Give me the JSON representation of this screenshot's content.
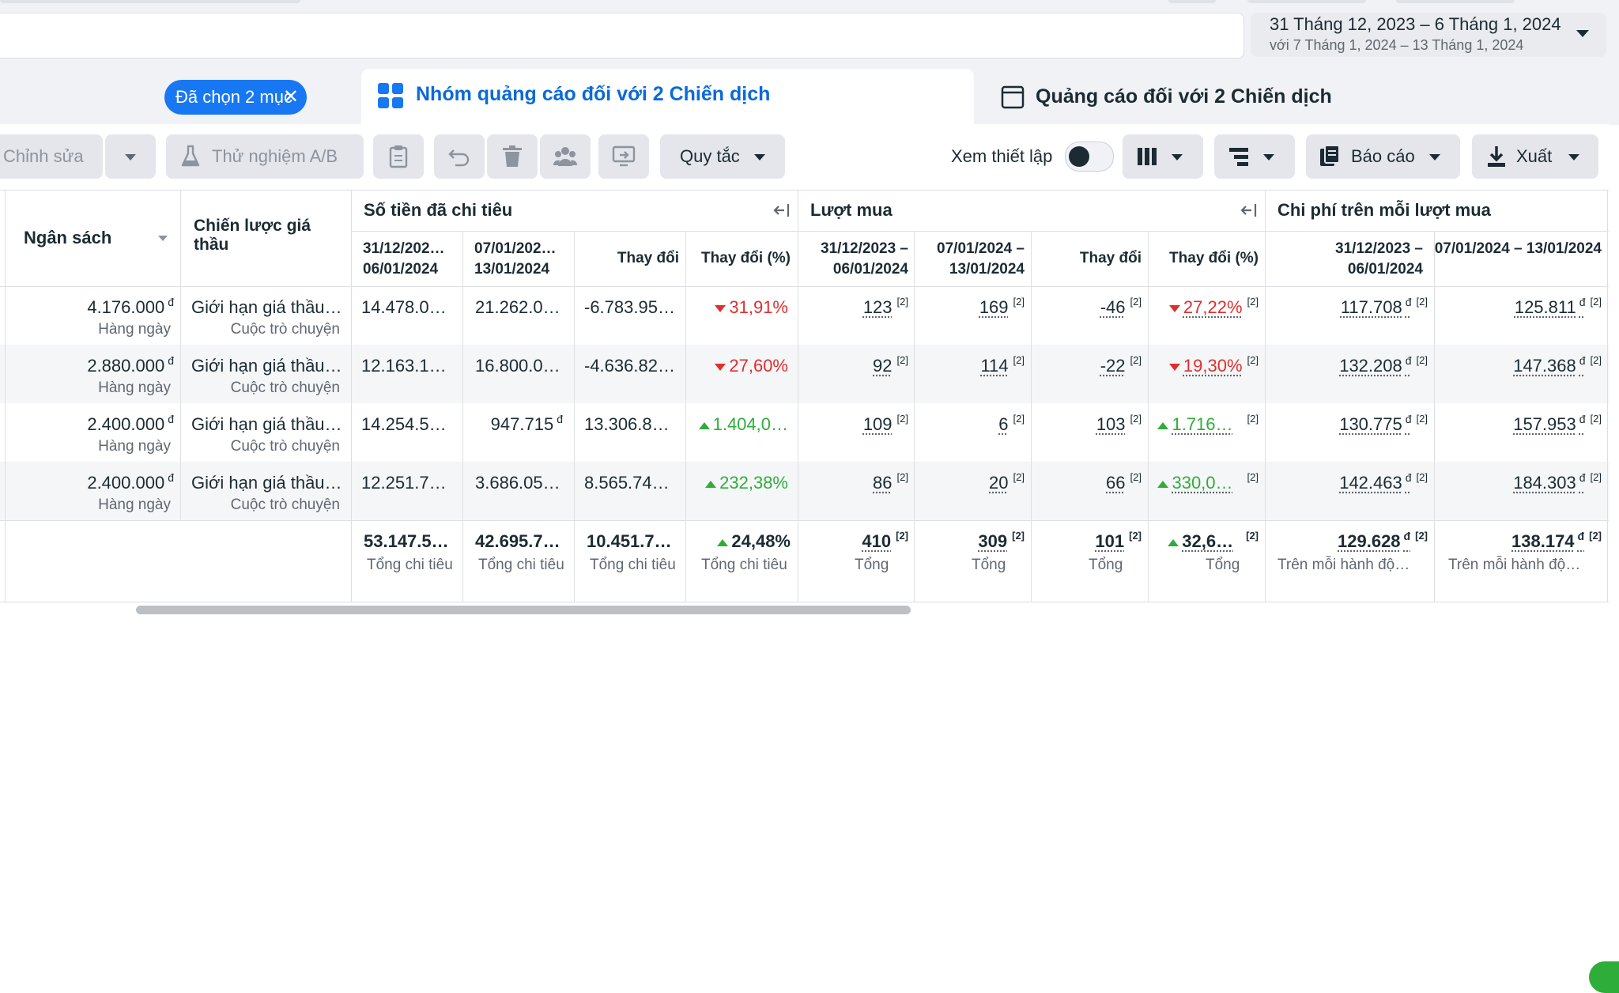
{
  "date_range": {
    "main": "31 Tháng 12, 2023 – 6 Tháng 1, 2024",
    "compare": "với 7 Tháng 1, 2024 – 13 Tháng 1, 2024"
  },
  "tabs": {
    "selected_chip": "Đã chọn 2 mục",
    "ad_sets": "Nhóm quảng cáo đối với 2 Chiến dịch",
    "ads": "Quảng cáo đối với 2 Chiến dịch"
  },
  "toolbar": {
    "edit": "Chỉnh sửa",
    "ab_test": "Thử nghiệm A/B",
    "rules": "Quy tắc",
    "view_setup": "Xem thiết lập",
    "reports": "Báo cáo",
    "export": "Xuất"
  },
  "columns": {
    "budget": "Ngân sách",
    "bid_strategy": "Chiến lược giá thầu",
    "spend_group": "Số tiền đã chi tiêu",
    "purchases_group": "Lượt mua",
    "cpp_group": "Chi phí trên mỗi lượt mua",
    "period1": "31/12/202… 06/01/2024",
    "period2": "07/01/202… 13/01/2024",
    "period1_full": "31/12/2023 – 06/01/2024",
    "period2_full": "07/01/2024 – 13/01/2024",
    "change": "Thay đổi",
    "change_pct": "Thay đổi (%)"
  },
  "rows": [
    {
      "budget": "4.176.000",
      "budget_cur": "đ",
      "budget_freq": "Hàng ngày",
      "bid": "Giới hạn giá thầu…",
      "bid_sub": "Cuộc trò chuyện",
      "spend1": "14.478.0…",
      "spend2": "21.262.0…",
      "spend_change": "-6.783.95…",
      "spend_pct": "31,91%",
      "spend_dir": "down",
      "p1": "123",
      "p2": "169",
      "p_change": "-46",
      "p_pct": "27,22%",
      "p_dir": "down",
      "cpp1": "117.708",
      "cpp2": "125.811"
    },
    {
      "budget": "2.880.000",
      "budget_cur": "đ",
      "budget_freq": "Hàng ngày",
      "bid": "Giới hạn giá thầu…",
      "bid_sub": "Cuộc trò chuyện",
      "spend1": "12.163.1…",
      "spend2": "16.800.0…",
      "spend_change": "-4.636.82…",
      "spend_pct": "27,60%",
      "spend_dir": "down",
      "p1": "92",
      "p2": "114",
      "p_change": "-22",
      "p_pct": "19,30%",
      "p_dir": "down",
      "cpp1": "132.208",
      "cpp2": "147.368"
    },
    {
      "budget": "2.400.000",
      "budget_cur": "đ",
      "budget_freq": "Hàng ngày",
      "bid": "Giới hạn giá thầu…",
      "bid_sub": "Cuộc trò chuyện",
      "spend1": "14.254.5…",
      "spend2": "947.715",
      "spend2_cur": "đ",
      "spend_change": "13.306.8…",
      "spend_pct": "1.404,0…",
      "spend_dir": "up",
      "p1": "109",
      "p2": "6",
      "p_change": "103",
      "p_pct": "1.716…",
      "p_dir": "up",
      "cpp1": "130.775",
      "cpp2": "157.953"
    },
    {
      "budget": "2.400.000",
      "budget_cur": "đ",
      "budget_freq": "Hàng ngày",
      "bid": "Giới hạn giá thầu…",
      "bid_sub": "Cuộc trò chuyện",
      "spend1": "12.251.7…",
      "spend2": "3.686.05…",
      "spend_change": "8.565.74…",
      "spend_pct": "232,38%",
      "spend_dir": "up",
      "p1": "86",
      "p2": "20",
      "p_change": "66",
      "p_pct": "330,0…",
      "p_dir": "up",
      "cpp1": "142.463",
      "cpp2": "184.303"
    }
  ],
  "totals": {
    "spend1": "53.147.5…",
    "spend2": "42.695.7…",
    "spend_change": "10.451.7…",
    "spend_pct": "24,48%",
    "spend_label": "Tổng chi tiêu",
    "p1": "410",
    "p2": "309",
    "p_change": "101",
    "p_pct": "32,6…",
    "p_label": "Tổng",
    "cpp1": "129.628",
    "cpp2": "138.174",
    "cpp_label": "Trên mỗi hành độ…"
  },
  "footnote_marker": "[2]",
  "currency": "đ"
}
